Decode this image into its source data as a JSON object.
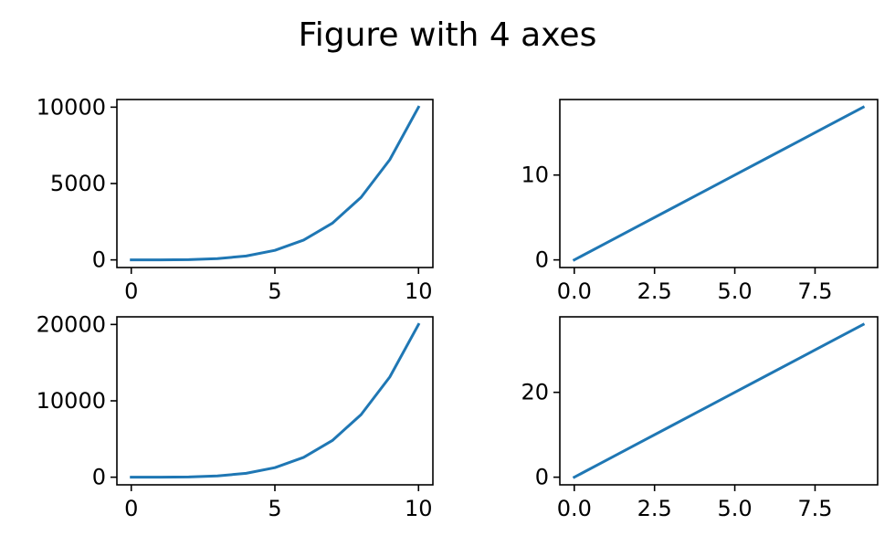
{
  "figure": {
    "title": "Figure with 4 axes"
  },
  "chart_data": [
    {
      "type": "line",
      "x": [
        0,
        1,
        2,
        3,
        4,
        5,
        6,
        7,
        8,
        9,
        10
      ],
      "series": [
        {
          "values": [
            0,
            2,
            16,
            81,
            256,
            625,
            1296,
            2401,
            4096,
            6561,
            10000
          ],
          "color": "#1f77b4"
        }
      ],
      "xlim": [
        -0.5,
        10.5
      ],
      "ylim": [
        -500,
        10500
      ],
      "xticks": [
        0,
        5,
        10
      ],
      "xtick_labels": [
        "0",
        "5",
        "10"
      ],
      "yticks": [
        0,
        5000,
        10000
      ],
      "ytick_labels": [
        "0",
        "5000",
        "10000"
      ],
      "grid": false
    },
    {
      "type": "line",
      "x": [
        0,
        1,
        2,
        3,
        4,
        5,
        6,
        7,
        8,
        9
      ],
      "series": [
        {
          "values": [
            0,
            2,
            4,
            6,
            8,
            10,
            12,
            14,
            16,
            18
          ],
          "color": "#1f77b4"
        }
      ],
      "xlim": [
        -0.45,
        9.45
      ],
      "ylim": [
        -0.9,
        18.9
      ],
      "xticks": [
        0,
        2.5,
        5,
        7.5
      ],
      "xtick_labels": [
        "0.0",
        "2.5",
        "5.0",
        "7.5"
      ],
      "yticks": [
        0,
        10
      ],
      "ytick_labels": [
        "0",
        "10"
      ],
      "grid": false
    },
    {
      "type": "line",
      "x": [
        0,
        1,
        2,
        3,
        4,
        5,
        6,
        7,
        8,
        9,
        10
      ],
      "series": [
        {
          "values": [
            0,
            2,
            32,
            162,
            512,
            1250,
            2592,
            4802,
            8192,
            13122,
            20000
          ],
          "color": "#1f77b4"
        }
      ],
      "xlim": [
        -0.5,
        10.5
      ],
      "ylim": [
        -1000,
        21000
      ],
      "xticks": [
        0,
        5,
        10
      ],
      "xtick_labels": [
        "0",
        "5",
        "10"
      ],
      "yticks": [
        0,
        10000,
        20000
      ],
      "ytick_labels": [
        "0",
        "10000",
        "20000"
      ],
      "grid": false
    },
    {
      "type": "line",
      "x": [
        0,
        1,
        2,
        3,
        4,
        5,
        6,
        7,
        8,
        9
      ],
      "series": [
        {
          "values": [
            0,
            4,
            8,
            12,
            16,
            20,
            24,
            28,
            32,
            36
          ],
          "color": "#1f77b4"
        }
      ],
      "xlim": [
        -0.45,
        9.45
      ],
      "ylim": [
        -1.8,
        37.8
      ],
      "xticks": [
        0,
        2.5,
        5,
        7.5
      ],
      "xtick_labels": [
        "0.0",
        "2.5",
        "5.0",
        "7.5"
      ],
      "yticks": [
        0,
        20
      ],
      "ytick_labels": [
        "0",
        "20"
      ],
      "grid": false
    }
  ]
}
